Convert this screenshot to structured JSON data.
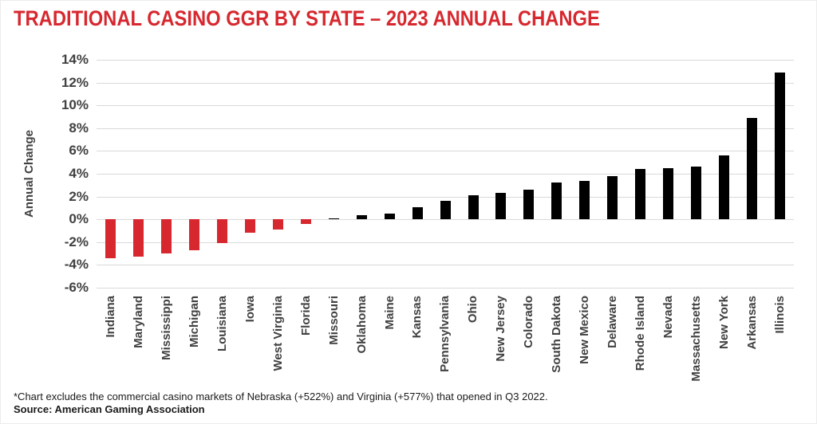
{
  "page": {
    "title": "TRADITIONAL CASINO GGR BY STATE – 2023 ANNUAL CHANGE",
    "footnote": "*Chart excludes the commercial casino markets of Nebraska (+522%) and Virginia (+577%) that opened in Q3 2022.",
    "source": "Source: American Gaming Association"
  },
  "colors": {
    "title": "#D7282F",
    "negative_bar": "#D7282F",
    "positive_bar": "#000000",
    "axis_text": "#414042",
    "gridline": "#D9D9D9",
    "footnote_text": "#1A1A1A"
  },
  "chart_data": {
    "type": "bar",
    "title": "TRADITIONAL CASINO GGR BY STATE – 2023 ANNUAL CHANGE",
    "xlabel": "",
    "ylabel": "Annual Change",
    "ylim": [
      -6,
      14
    ],
    "ytick_values": [
      14,
      12,
      10,
      8,
      6,
      4,
      2,
      0,
      -2,
      -4,
      -6
    ],
    "ytick_labels": [
      "14%",
      "12%",
      "10%",
      "8%",
      "6%",
      "4%",
      "2%",
      "0%",
      "-2%",
      "-4%",
      "-6%"
    ],
    "grid": true,
    "legend": false,
    "x_labels_rotation_degrees": 90,
    "value_unit": "percent",
    "categories": [
      "Indiana",
      "Maryland",
      "Mississippi",
      "Michigan",
      "Louisiana",
      "Iowa",
      "West Virginia",
      "Florida",
      "Missouri",
      "Oklahoma",
      "Maine",
      "Kansas",
      "Pennsylvania",
      "Ohio",
      "New Jersey",
      "Colorado",
      "South Dakota",
      "New Mexico",
      "Delaware",
      "Rhode Island",
      "Nevada",
      "Massachusetts",
      "New York",
      "Arkansas",
      "Illinois"
    ],
    "values": [
      -3.4,
      -3.3,
      -3.0,
      -2.7,
      -2.1,
      -1.2,
      -0.9,
      -0.4,
      0.1,
      0.4,
      0.5,
      1.1,
      1.6,
      2.1,
      2.3,
      2.6,
      3.2,
      3.4,
      3.8,
      4.4,
      4.5,
      4.6,
      5.6,
      8.9,
      12.9
    ]
  }
}
